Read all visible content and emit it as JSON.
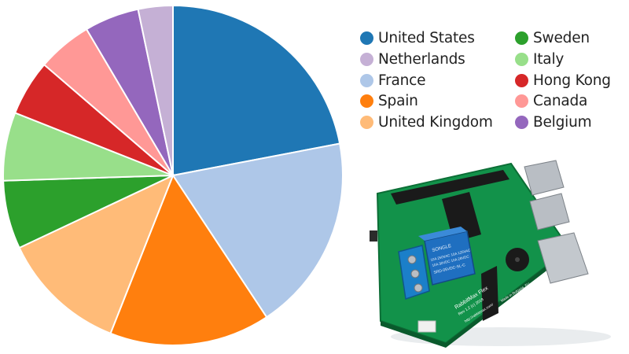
{
  "chart_data": {
    "type": "pie",
    "title": "",
    "start_angle_deg": 0,
    "direction": "clockwise",
    "slice_border_color": "#ffffff",
    "legend_position": "right",
    "legend_columns": 2,
    "slices": [
      {
        "label": "United States",
        "value": 22.0,
        "color": "#1f77b4"
      },
      {
        "label": "France",
        "value": 18.7,
        "color": "#aec7e8"
      },
      {
        "label": "Spain",
        "value": 15.3,
        "color": "#ff7f0e"
      },
      {
        "label": "United Kingdom",
        "value": 12.0,
        "color": "#ffbb78"
      },
      {
        "label": "Sweden",
        "value": 6.5,
        "color": "#2ca02c"
      },
      {
        "label": "Italy",
        "value": 6.5,
        "color": "#98df8a"
      },
      {
        "label": "Hong Kong",
        "value": 5.3,
        "color": "#d62728"
      },
      {
        "label": "Canada",
        "value": 5.2,
        "color": "#ff9896"
      },
      {
        "label": "Belgium",
        "value": 5.2,
        "color": "#9467bd"
      },
      {
        "label": "Netherlands",
        "value": 3.3,
        "color": "#c5b0d5"
      }
    ],
    "legend": [
      {
        "label": "United States",
        "color": "#1f77b4"
      },
      {
        "label": "Netherlands",
        "color": "#c5b0d5"
      },
      {
        "label": "France",
        "color": "#aec7e8"
      },
      {
        "label": "Spain",
        "color": "#ff7f0e"
      },
      {
        "label": "United Kingdom",
        "color": "#ffbb78"
      },
      {
        "label": "Sweden",
        "color": "#2ca02c"
      },
      {
        "label": "Italy",
        "color": "#98df8a"
      },
      {
        "label": "Hong Kong",
        "color": "#d62728"
      },
      {
        "label": "Canada",
        "color": "#ff9896"
      },
      {
        "label": "Belgium",
        "color": "#9467bd"
      }
    ]
  },
  "product_photo": {
    "icon": "circuit-board-photo",
    "board_name": "RabbitMax Flex",
    "board_rev": "Rev 1.2 (c) 2018",
    "board_url": "http://rabbitmax.com/",
    "board_origin": "Made in Bulgaria, EU",
    "relay_brand": "SONGLE",
    "relay_model": "SRD-05VDC-SL-C",
    "relay_specs": [
      "10A 250VAC 10A 125VAC",
      "10A 30VDC 10A 28VDC"
    ],
    "colors": {
      "pcb": "#12924a",
      "relay": "#1f6fc0",
      "terminal": "#1b7fc9",
      "header": "#1a1a1a",
      "metal": "#b9bec4"
    }
  }
}
